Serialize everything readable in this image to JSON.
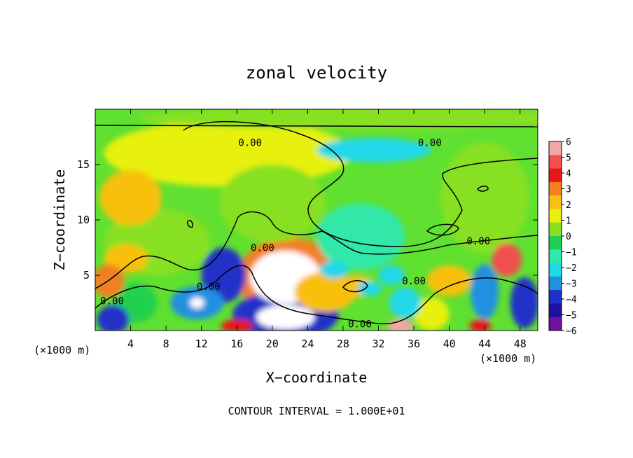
{
  "chart_data": {
    "type": "heatmap",
    "title": "zonal velocity",
    "xlabel": "X−coordinate",
    "ylabel": "Z−coordinate",
    "x_unit_label": "(×1000 m)",
    "xlim": [
      0,
      50
    ],
    "ylim": [
      0,
      20
    ],
    "x_ticks": [
      4,
      8,
      12,
      16,
      20,
      24,
      28,
      32,
      36,
      40,
      44,
      48
    ],
    "y_ticks": [
      5,
      10,
      15
    ],
    "footer": "CONTOUR INTERVAL = 1.000E+01",
    "contour_labels": [
      {
        "text": "0.00",
        "x": 17.5,
        "y": 17.0
      },
      {
        "text": "0.00",
        "x": 37.8,
        "y": 17.0
      },
      {
        "text": "0.00",
        "x": 43.3,
        "y": 8.1
      },
      {
        "text": "0.00",
        "x": 18.9,
        "y": 7.5
      },
      {
        "text": "0.00",
        "x": 12.8,
        "y": 4.0
      },
      {
        "text": "0.00",
        "x": 36.0,
        "y": 4.5
      },
      {
        "text": "0.00",
        "x": 1.9,
        "y": 2.7
      },
      {
        "text": "0.00",
        "x": 29.9,
        "y": 0.6
      }
    ],
    "colorbar": {
      "levels": [
        6,
        5,
        4,
        3,
        2,
        1,
        0,
        -1,
        -2,
        -3,
        -4,
        -5,
        -6
      ],
      "colors": [
        "#f4a6a6",
        "#f05050",
        "#e81818",
        "#f08020",
        "#f8c010",
        "#e8f010",
        "#88e020",
        "#20d050",
        "#30e8a8",
        "#20d8e8",
        "#2090e0",
        "#2030c8",
        "#2010a0",
        "#7010a0"
      ]
    },
    "features": [
      {
        "x": 21.5,
        "y": 4.8,
        "rx": 4.0,
        "ry": 2.4,
        "v": 7
      },
      {
        "x": 21.5,
        "y": 1.2,
        "rx": 3.3,
        "ry": 1.1,
        "v": 7
      },
      {
        "x": 22.0,
        "y": 4.8,
        "rx": 6.0,
        "ry": 3.6,
        "v": 3.5
      },
      {
        "x": 26.0,
        "y": 3.5,
        "rx": 3.5,
        "ry": 1.8,
        "v": 2.5
      },
      {
        "x": 21.5,
        "y": 1.4,
        "rx": 6.0,
        "ry": 2.2,
        "v": -4.5
      },
      {
        "x": 14.5,
        "y": 5.0,
        "rx": 2.5,
        "ry": 2.5,
        "v": -4.5
      },
      {
        "x": 11.5,
        "y": 2.5,
        "rx": 3.0,
        "ry": 1.5,
        "v": -4.0
      },
      {
        "x": 11.5,
        "y": 2.5,
        "rx": 0.8,
        "ry": 0.5,
        "v": 7
      },
      {
        "x": 2.0,
        "y": 1.0,
        "rx": 1.8,
        "ry": 1.3,
        "v": -5
      },
      {
        "x": 46.5,
        "y": 6.4,
        "rx": 1.7,
        "ry": 1.5,
        "v": 5
      },
      {
        "x": 44.0,
        "y": 3.5,
        "rx": 1.6,
        "ry": 2.5,
        "v": -3.5
      },
      {
        "x": 48.5,
        "y": 2.5,
        "rx": 1.6,
        "ry": 2.3,
        "v": -4.5
      },
      {
        "x": 35.0,
        "y": 2.5,
        "rx": 1.8,
        "ry": 1.4,
        "v": -3
      },
      {
        "x": 29.5,
        "y": 4.0,
        "rx": 2.2,
        "ry": 1.0,
        "v": 2.5
      },
      {
        "x": 31.0,
        "y": 3.8,
        "rx": 1.4,
        "ry": 0.7,
        "v": -2.5
      },
      {
        "x": 33.5,
        "y": 5.0,
        "rx": 1.5,
        "ry": 0.9,
        "v": -3
      },
      {
        "x": 27.0,
        "y": 5.5,
        "rx": 1.6,
        "ry": 0.8,
        "v": -3
      },
      {
        "x": 40.0,
        "y": 4.5,
        "rx": 2.5,
        "ry": 1.4,
        "v": 2.5
      },
      {
        "x": 1.5,
        "y": 4.5,
        "rx": 1.8,
        "ry": 1.5,
        "v": 3
      },
      {
        "x": 3.5,
        "y": 6.5,
        "rx": 2.5,
        "ry": 1.3,
        "v": 2.5
      },
      {
        "x": 4.0,
        "y": 12.0,
        "rx": 3.5,
        "ry": 2.5,
        "v": 2.5
      },
      {
        "x": 30.0,
        "y": 8.5,
        "rx": 5.0,
        "ry": 3.0,
        "v": -1.5
      },
      {
        "x": 31.5,
        "y": 16.3,
        "rx": 6.5,
        "ry": 1.1,
        "v": -2.5
      },
      {
        "x": 30.0,
        "y": 19.2,
        "rx": 25.0,
        "ry": 1.0,
        "v": 0.2
      },
      {
        "x": 15.0,
        "y": 16.0,
        "rx": 14.0,
        "ry": 3.0,
        "v": 1.4
      },
      {
        "x": 44.0,
        "y": 12.0,
        "rx": 5.0,
        "ry": 5.0,
        "v": 0.3
      },
      {
        "x": 7.0,
        "y": 8.0,
        "rx": 6.0,
        "ry": 3.0,
        "v": 0.9
      },
      {
        "x": 20.0,
        "y": 11.5,
        "rx": 6.0,
        "ry": 3.5,
        "v": 0.8
      },
      {
        "x": 38.0,
        "y": 1.5,
        "rx": 2.0,
        "ry": 1.5,
        "v": 1.5
      },
      {
        "x": 4.5,
        "y": 2.5,
        "rx": 2.5,
        "ry": 1.8,
        "v": -1.0
      },
      {
        "x": 34.5,
        "y": 0.4,
        "rx": 1.5,
        "ry": 0.6,
        "v": 6
      },
      {
        "x": 43.5,
        "y": 0.4,
        "rx": 1.2,
        "ry": 0.6,
        "v": 4
      },
      {
        "x": 16.0,
        "y": 0.4,
        "rx": 1.8,
        "ry": 0.6,
        "v": 4
      }
    ]
  }
}
